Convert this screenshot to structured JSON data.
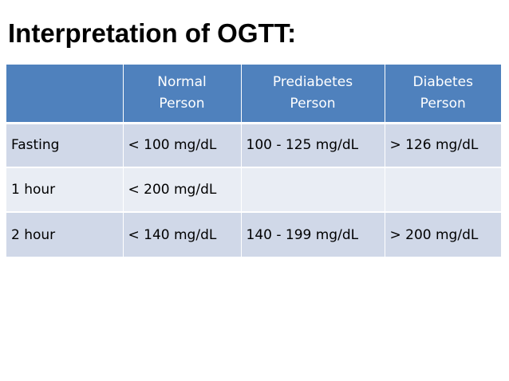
{
  "title": "Interpretation of OGTT:",
  "table": {
    "headers": [
      {
        "line1": "",
        "line2": ""
      },
      {
        "line1": "Normal",
        "line2": "Person"
      },
      {
        "line1": "Prediabetes",
        "line2": "Person"
      },
      {
        "line1": "Diabetes",
        "line2": "Person"
      }
    ],
    "rows": [
      [
        "Fasting",
        "< 100 mg/dL",
        "100 - 125 mg/dL",
        "> 126 mg/dL"
      ],
      [
        "1 hour",
        "< 200 mg/dL",
        "",
        ""
      ],
      [
        "2 hour",
        "< 140 mg/dL",
        "140 - 199 mg/dL",
        "> 200 mg/dL"
      ]
    ]
  },
  "colors": {
    "header_bg": "#4f81bd",
    "row_odd_bg": "#d0d8e8",
    "row_even_bg": "#e9edf4"
  }
}
